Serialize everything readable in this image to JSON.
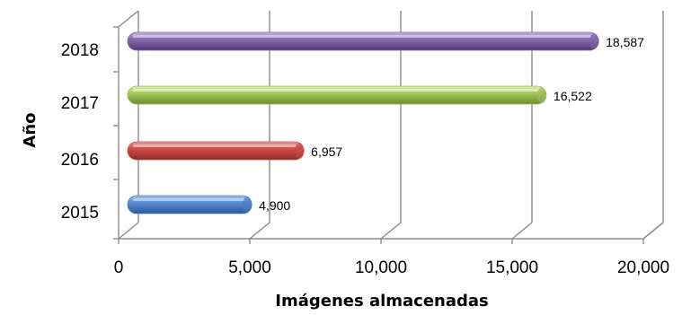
{
  "chart_data": {
    "type": "bar",
    "orientation": "horizontal",
    "style": "3d-cylinder",
    "categories": [
      "2015",
      "2016",
      "2017",
      "2018"
    ],
    "values": [
      4900,
      6957,
      16522,
      18587
    ],
    "value_labels": [
      "4,900",
      "6,957",
      "16,522",
      "18,587"
    ],
    "bar_colors": [
      "#4a7ebf",
      "#c0504d",
      "#9bbb59",
      "#8064a2"
    ],
    "xlabel": "Imágenes almacenadas",
    "ylabel": "Año",
    "xlim": [
      0,
      20000
    ],
    "xticks": [
      0,
      5000,
      10000,
      15000,
      20000
    ],
    "xtick_labels": [
      "0",
      "5,000",
      "10,000",
      "15,000",
      "20,000"
    ],
    "grid": true,
    "legend": "none"
  }
}
